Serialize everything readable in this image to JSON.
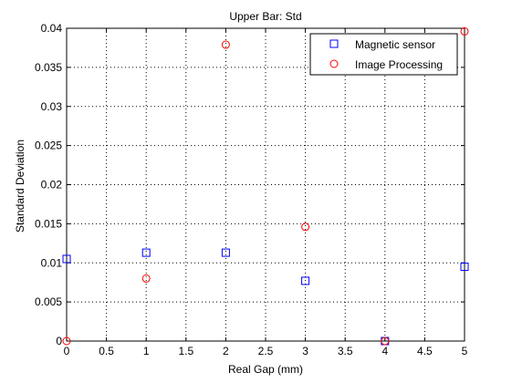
{
  "chart_data": {
    "type": "scatter",
    "title": "Upper Bar: Std",
    "xlabel": "Real Gap (mm)",
    "ylabel": "Standard Deviation",
    "xlim": [
      0,
      5
    ],
    "ylim": [
      0,
      0.04
    ],
    "xticks": [
      0,
      0.5,
      1,
      1.5,
      2,
      2.5,
      3,
      3.5,
      4,
      4.5,
      5
    ],
    "xtick_labels": [
      "0",
      "0.5",
      "1",
      "1.5",
      "2",
      "2.5",
      "3",
      "3.5",
      "4",
      "4.5",
      "5"
    ],
    "yticks": [
      0,
      0.005,
      0.01,
      0.015,
      0.02,
      0.025,
      0.03,
      0.035,
      0.04
    ],
    "ytick_labels": [
      "0",
      "0.005",
      "0.01",
      "0.015",
      "0.02",
      "0.025",
      "0.03",
      "0.035",
      "0.04"
    ],
    "grid": true,
    "legend_position": "top-right",
    "series": [
      {
        "name": "Magnetic sensor",
        "marker": "square",
        "color": "#0000ff",
        "x": [
          0,
          1,
          2,
          3,
          4,
          5
        ],
        "y": [
          0.0105,
          0.0113,
          0.0113,
          0.0077,
          0.0,
          0.0095
        ]
      },
      {
        "name": "Image Processing",
        "marker": "circle",
        "color": "#ff0000",
        "x": [
          0,
          1,
          2,
          3,
          4,
          5
        ],
        "y": [
          0.0,
          0.008,
          0.0379,
          0.0146,
          0.0,
          0.0396
        ]
      }
    ]
  }
}
